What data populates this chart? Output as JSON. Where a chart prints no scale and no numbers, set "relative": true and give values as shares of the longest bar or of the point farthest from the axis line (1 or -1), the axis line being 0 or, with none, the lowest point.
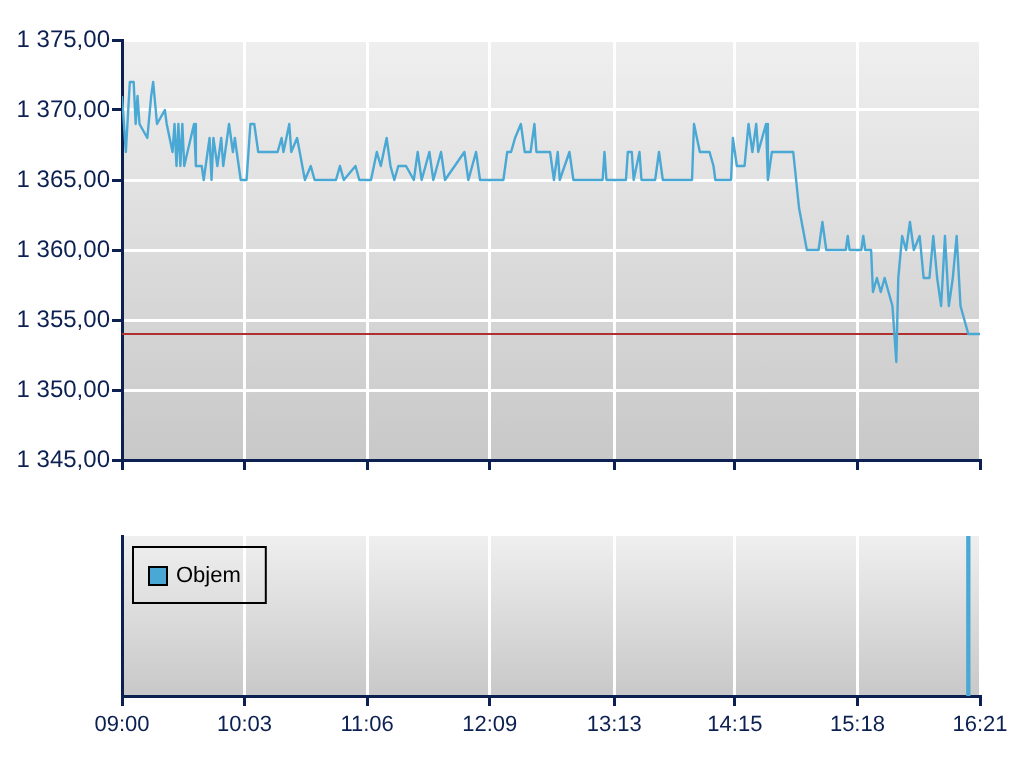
{
  "chart_data": [
    {
      "type": "line",
      "series": [
        {
          "color": "#4aa8d4",
          "x": [
            9.0,
            9.033,
            9.067,
            9.1,
            9.117,
            9.133,
            9.15,
            9.217,
            9.25,
            9.267,
            9.3,
            9.367,
            9.383,
            9.433,
            9.45,
            9.467,
            9.483,
            9.5,
            9.517,
            9.533,
            9.617,
            9.633,
            9.683,
            9.7,
            9.75,
            9.767,
            9.783,
            9.817,
            9.85,
            9.867,
            9.917,
            9.95,
            9.967,
            9.983,
            10.017,
            10.067,
            10.1,
            10.133,
            10.167,
            10.333,
            10.367,
            10.383,
            10.433,
            10.45,
            10.5,
            10.567,
            10.617,
            10.65,
            10.833,
            10.867,
            10.9,
            11.0,
            11.033,
            11.133,
            11.183,
            11.217,
            11.267,
            11.3,
            11.333,
            11.367,
            11.433,
            11.5,
            11.533,
            11.567,
            11.633,
            11.667,
            11.733,
            11.767,
            11.933,
            11.967,
            12.033,
            12.067,
            12.267,
            12.3,
            12.333,
            12.367,
            12.417,
            12.45,
            12.5,
            12.533,
            12.55,
            12.667,
            12.7,
            12.733,
            12.75,
            12.833,
            12.867,
            13.117,
            13.133,
            13.15,
            13.317,
            13.333,
            13.367,
            13.383,
            13.433,
            13.45,
            13.567,
            13.6,
            13.633,
            13.883,
            13.9,
            13.95,
            14.033,
            14.067,
            14.083,
            14.217,
            14.233,
            14.267,
            14.333,
            14.367,
            14.4,
            14.433,
            14.45,
            14.517,
            14.533,
            14.567,
            14.75,
            14.8,
            14.867,
            14.967,
            15.0,
            15.033,
            15.2,
            15.217,
            15.233,
            15.333,
            15.35,
            15.367,
            15.417,
            15.433,
            15.467,
            15.5,
            15.533,
            15.6,
            15.633,
            15.65,
            15.683,
            15.717,
            15.75,
            15.783,
            15.833,
            15.867,
            15.917,
            15.95,
            15.983,
            16.017,
            16.05,
            16.083,
            16.117,
            16.15,
            16.183,
            16.25,
            16.35
          ],
          "values": [
            1371,
            1367,
            1372,
            1372,
            1369,
            1371,
            1369,
            1368,
            1371,
            1372,
            1369,
            1370,
            1369,
            1367,
            1369,
            1366,
            1369,
            1366,
            1369,
            1366,
            1369,
            1366,
            1366,
            1365,
            1368,
            1365,
            1368,
            1366,
            1368,
            1366,
            1369,
            1367,
            1368,
            1367,
            1365,
            1365,
            1369,
            1369,
            1367,
            1367,
            1368,
            1367,
            1369,
            1367,
            1368,
            1365,
            1366,
            1365,
            1365,
            1366,
            1365,
            1366,
            1365,
            1365,
            1367,
            1366,
            1368,
            1366,
            1365,
            1366,
            1366,
            1365,
            1367,
            1365,
            1367,
            1365,
            1367,
            1365,
            1367,
            1365,
            1367,
            1365,
            1365,
            1367,
            1367,
            1368,
            1369,
            1367,
            1367,
            1369,
            1367,
            1367,
            1365,
            1367,
            1365,
            1367,
            1365,
            1365,
            1367,
            1365,
            1365,
            1367,
            1367,
            1365,
            1367,
            1365,
            1365,
            1367,
            1365,
            1365,
            1369,
            1367,
            1367,
            1366,
            1365,
            1365,
            1368,
            1366,
            1366,
            1369,
            1367,
            1369,
            1367,
            1369,
            1365,
            1367,
            1367,
            1363,
            1360,
            1360,
            1362,
            1360,
            1360,
            1361,
            1360,
            1360,
            1361,
            1360,
            1360,
            1357,
            1358,
            1357,
            1358,
            1356,
            1352,
            1358,
            1361,
            1360,
            1362,
            1360,
            1361,
            1358,
            1358,
            1361,
            1358,
            1356,
            1361,
            1356,
            1358,
            1361,
            1356,
            1354,
            1354
          ]
        }
      ],
      "xlim": [
        9,
        16.35
      ],
      "xticks": [
        {
          "value": 9,
          "label": null
        },
        {
          "value": 10.05,
          "label": null
        },
        {
          "value": 11.1,
          "label": null
        },
        {
          "value": 12.15,
          "label": null
        },
        {
          "value": 13.217,
          "label": null
        },
        {
          "value": 14.25,
          "label": null
        },
        {
          "value": 15.3,
          "label": null
        },
        {
          "value": 16.35,
          "label": null
        }
      ],
      "ylim": [
        1345,
        1375
      ],
      "yticks": [
        {
          "value": 1345,
          "label": "1 345,00"
        },
        {
          "value": 1350,
          "label": "1 350,00"
        },
        {
          "value": 1355,
          "label": "1 355,00"
        },
        {
          "value": 1360,
          "label": "1 360,00"
        },
        {
          "value": 1365,
          "label": "1 365,00"
        },
        {
          "value": 1370,
          "label": "1 370,00"
        },
        {
          "value": 1375,
          "label": "1 375,00"
        }
      ],
      "ref_lines": [
        {
          "axis": "y",
          "value": 1354,
          "color": "#b03030"
        }
      ],
      "grid": true,
      "tick_labels": "y"
    },
    {
      "type": "bar",
      "series": [
        {
          "name": "Objem",
          "color": "#4aa8d4",
          "x": [
            16.25
          ],
          "values": [
            1
          ]
        }
      ],
      "xlim": [
        9,
        16.35
      ],
      "xticks": [
        {
          "value": 9,
          "label": "09:00"
        },
        {
          "value": 10.05,
          "label": "10:03"
        },
        {
          "value": 11.1,
          "label": "11:06"
        },
        {
          "value": 12.15,
          "label": "12:09"
        },
        {
          "value": 13.217,
          "label": "13:13"
        },
        {
          "value": 14.25,
          "label": "14:15"
        },
        {
          "value": 15.3,
          "label": "15:18"
        },
        {
          "value": 16.35,
          "label": "16:21"
        }
      ],
      "relative": true,
      "grid": "x",
      "legend": "top left"
    }
  ]
}
